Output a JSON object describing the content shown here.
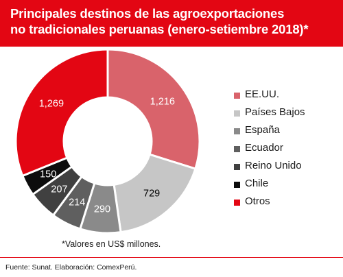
{
  "title": {
    "line1": "Principales destinos de las agroexportaciones",
    "line2": "no tradicionales peruanas (enero-setiembre 2018)*"
  },
  "note": "*Valores en US$ millones.",
  "source": "Fuente: Sunat. Elaboración: ComexPerú.",
  "colors": {
    "brand": "#e30613",
    "label_light": "#ffffff",
    "label_dark": "#000000"
  },
  "chart_data": {
    "type": "pie",
    "variant": "donut",
    "legend_position": "right",
    "units": "US$ millones",
    "slices": [
      {
        "label": "EE.UU.",
        "value": 1216,
        "value_label": "1,216",
        "color": "#d9636b"
      },
      {
        "label": "Países Bajos",
        "value": 729,
        "value_label": "729",
        "color": "#c6c6c6"
      },
      {
        "label": "España",
        "value": 290,
        "value_label": "290",
        "color": "#8a8a8a"
      },
      {
        "label": "Ecuador",
        "value": 214,
        "value_label": "214",
        "color": "#5f5f5f"
      },
      {
        "label": "Reino Unido",
        "value": 207,
        "value_label": "207",
        "color": "#404040"
      },
      {
        "label": "Chile",
        "value": 150,
        "value_label": "150",
        "color": "#0d0d0d"
      },
      {
        "label": "Otros",
        "value": 1269,
        "value_label": "1,269",
        "color": "#e30613"
      }
    ]
  }
}
